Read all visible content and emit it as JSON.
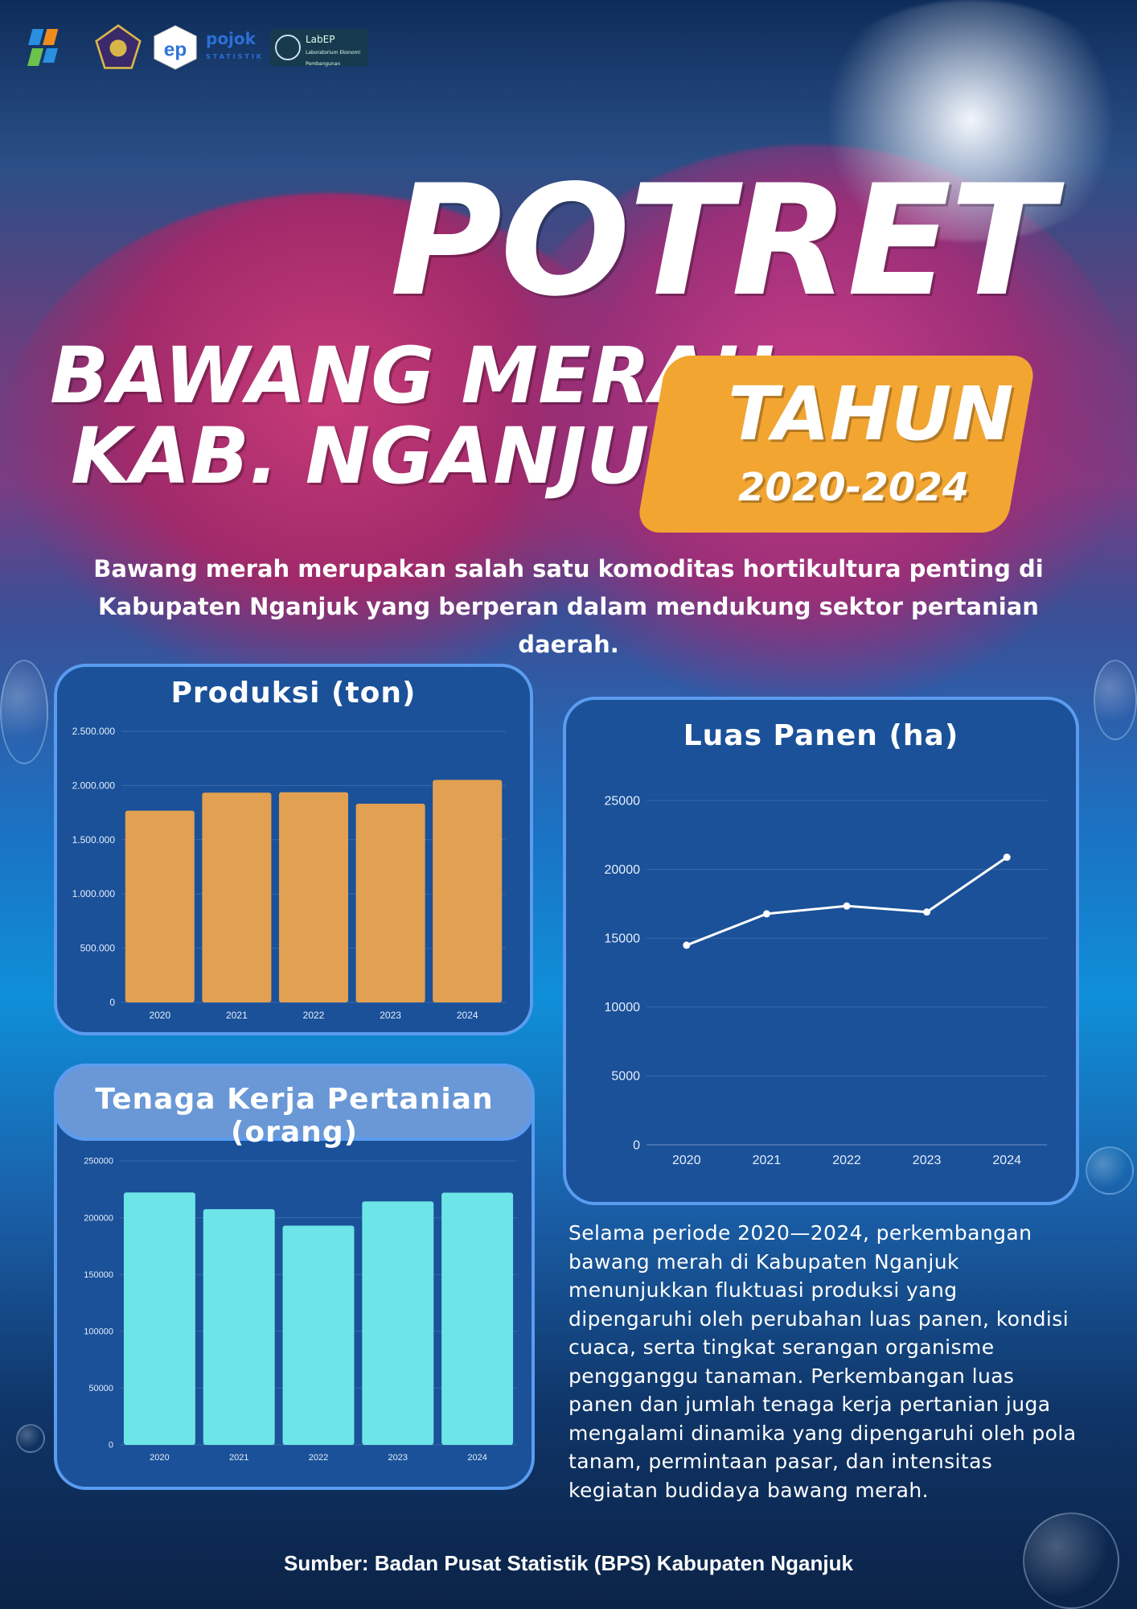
{
  "logos": [
    "BPS",
    "Universitas Muhammadiyah Malang",
    "UMM EP",
    "pojok STATISTIK",
    "LabEP Laboratorium Ekonomi Pembangunan"
  ],
  "header": {
    "title_main": "POTRET",
    "title_line1": "BAWANG MERAH",
    "title_line2": "KAB. NGANJUK",
    "badge_label": "TAHUN",
    "badge_years": "2020-2024"
  },
  "subtitle": "Bawang merah merupakan salah satu komoditas hortikultura penting di Kabupaten Nganjuk yang berperan dalam mendukung sektor pertanian daerah.",
  "colors": {
    "card": "#1a5199",
    "card_border": "#5b9cf0",
    "bar_produksi": "#e2a052",
    "bar_tenaga": "#6de5e8",
    "badge": "#f2a531"
  },
  "chart_data": [
    {
      "type": "bar",
      "title": "Produksi (ton)",
      "categories": [
        "2020",
        "2021",
        "2022",
        "2023",
        "2024"
      ],
      "values": [
        1768000,
        1934000,
        1938000,
        1832000,
        2052000
      ],
      "ylim": [
        0,
        2500000
      ],
      "yticks": [
        "0",
        "500.000",
        "1.000.000",
        "1.500.000",
        "2.000.000",
        "2.500.000"
      ],
      "grid": true
    },
    {
      "type": "line",
      "title": "Luas Panen (ha)",
      "categories": [
        "2020",
        "2021",
        "2022",
        "2023",
        "2024"
      ],
      "values": [
        14490,
        16770,
        17340,
        16900,
        20880
      ],
      "ylim": [
        0,
        25000
      ],
      "yticks": [
        "0",
        "5000",
        "10000",
        "15000",
        "20000",
        "25000"
      ],
      "grid": true
    },
    {
      "type": "bar",
      "title": "Tenaga Kerja Pertanian (orang)",
      "categories": [
        "2020",
        "2021",
        "2022",
        "2023",
        "2024"
      ],
      "values": [
        222200,
        207500,
        193000,
        214300,
        222000
      ],
      "ylim": [
        0,
        250000
      ],
      "yticks": [
        "0",
        "50000",
        "100000",
        "150000",
        "200000",
        "250000"
      ],
      "grid": true
    }
  ],
  "paragraph": "Selama periode 2020—2024, perkembangan bawang merah di Kabupaten Nganjuk menunjukkan fluktuasi produksi yang dipengaruhi oleh perubahan luas panen, kondisi cuaca, serta tingkat serangan organisme pengganggu tanaman. Perkembangan luas panen dan jumlah tenaga kerja pertanian juga mengalami dinamika yang dipengaruhi oleh pola tanam, permintaan pasar, dan intensitas kegiatan budidaya bawang merah.",
  "source": "Sumber: Badan Pusat Statistik (BPS) Kabupaten Nganjuk"
}
